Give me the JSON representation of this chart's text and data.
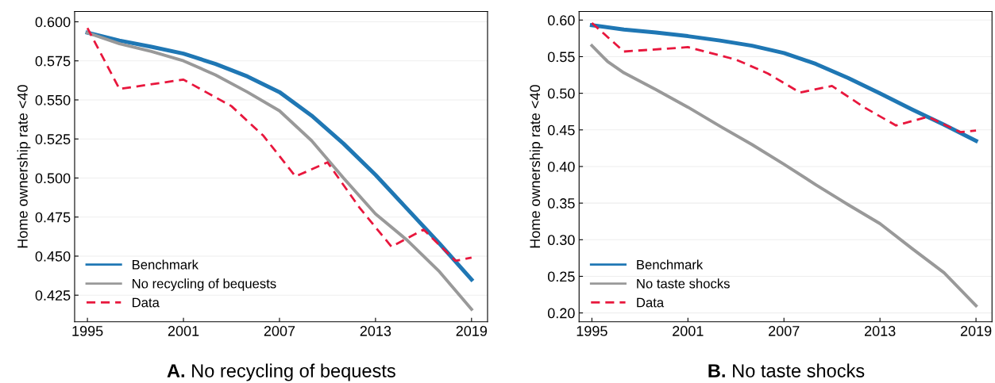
{
  "chart_data": [
    {
      "type": "line",
      "title": "A. No recycling of bequests",
      "ylabel": "Home ownership rate <40",
      "xlim": [
        1994.2,
        2020
      ],
      "ylim": [
        0.408,
        0.6066
      ],
      "xticks": [
        1995,
        2001,
        2007,
        2013,
        2019
      ],
      "yticks": [
        {
          "value": 0.425,
          "label": "0.425"
        },
        {
          "value": 0.45,
          "label": "0.450"
        },
        {
          "value": 0.475,
          "label": "0.475"
        },
        {
          "value": 0.5,
          "label": "0.500"
        },
        {
          "value": 0.525,
          "label": "0.525"
        },
        {
          "value": 0.55,
          "label": "0.550"
        },
        {
          "value": 0.575,
          "label": "0.575"
        },
        {
          "value": 0.6,
          "label": "0.600"
        }
      ],
      "grid": "y",
      "legend": "bottom left",
      "series": [
        {
          "name": "Benchmark",
          "color": "#1f77b4",
          "line_style": "solid",
          "x": [
            1995,
            1997,
            1999,
            2001,
            2003,
            2005,
            2007,
            2009,
            2011,
            2013,
            2015,
            2017,
            2019
          ],
          "values": [
            0.593,
            0.588,
            0.584,
            0.5796,
            0.573,
            0.565,
            0.555,
            0.54,
            0.522,
            0.502,
            0.48,
            0.458,
            0.435
          ]
        },
        {
          "name": "No recycling of bequests",
          "color": "#999999",
          "line_style": "solid",
          "x": [
            1995,
            1997,
            1999,
            2001,
            2003,
            2005,
            2007,
            2009,
            2011,
            2013,
            2015,
            2017,
            2019
          ],
          "values": [
            0.593,
            0.586,
            0.581,
            0.575,
            0.566,
            0.555,
            0.543,
            0.524,
            0.5,
            0.477,
            0.46,
            0.44,
            0.416
          ]
        },
        {
          "name": "Data",
          "color": "#e8173d",
          "line_style": "dashed",
          "x": [
            1995,
            1997,
            2001,
            2004,
            2006,
            2008,
            2010,
            2012,
            2014,
            2016,
            2018,
            2019
          ],
          "values": [
            0.596,
            0.557,
            0.563,
            0.546,
            0.527,
            0.501,
            0.51,
            0.481,
            0.456,
            0.467,
            0.447,
            0.449
          ]
        }
      ]
    },
    {
      "type": "line",
      "title": "B. No taste shocks",
      "ylabel": "Home ownership rate <40",
      "xlim": [
        1994.2,
        2020
      ],
      "ylim": [
        0.188,
        0.6117
      ],
      "xticks": [
        1995,
        2001,
        2007,
        2013,
        2019
      ],
      "yticks": [
        {
          "value": 0.2,
          "label": "0.20"
        },
        {
          "value": 0.25,
          "label": "0.25"
        },
        {
          "value": 0.3,
          "label": "0.30"
        },
        {
          "value": 0.35,
          "label": "0.35"
        },
        {
          "value": 0.4,
          "label": "0.40"
        },
        {
          "value": 0.45,
          "label": "0.45"
        },
        {
          "value": 0.5,
          "label": "0.50"
        },
        {
          "value": 0.55,
          "label": "0.55"
        },
        {
          "value": 0.6,
          "label": "0.60"
        }
      ],
      "grid": "y",
      "legend": "bottom left",
      "series": [
        {
          "name": "Benchmark",
          "color": "#1f77b4",
          "line_style": "solid",
          "x": [
            1995,
            1997,
            1999,
            2001,
            2003,
            2005,
            2007,
            2009,
            2011,
            2013,
            2015,
            2017,
            2019
          ],
          "values": [
            0.593,
            0.587,
            0.583,
            0.578,
            0.572,
            0.565,
            0.555,
            0.54,
            0.521,
            0.5,
            0.478,
            0.457,
            0.435
          ]
        },
        {
          "name": "No taste shocks",
          "color": "#999999",
          "line_style": "solid",
          "x": [
            1995,
            1996,
            1997,
            1999,
            2001,
            2003,
            2005,
            2007,
            2009,
            2011,
            2013,
            2015,
            2017,
            2019
          ],
          "values": [
            0.565,
            0.543,
            0.528,
            0.505,
            0.481,
            0.455,
            0.43,
            0.403,
            0.375,
            0.348,
            0.322,
            0.288,
            0.255,
            0.21
          ]
        },
        {
          "name": "Data",
          "color": "#e8173d",
          "line_style": "dashed",
          "x": [
            1995,
            1997,
            2001,
            2004,
            2006,
            2008,
            2010,
            2012,
            2014,
            2016,
            2018,
            2019
          ],
          "values": [
            0.596,
            0.557,
            0.563,
            0.546,
            0.527,
            0.501,
            0.51,
            0.481,
            0.456,
            0.468,
            0.447,
            0.449
          ]
        }
      ]
    }
  ]
}
